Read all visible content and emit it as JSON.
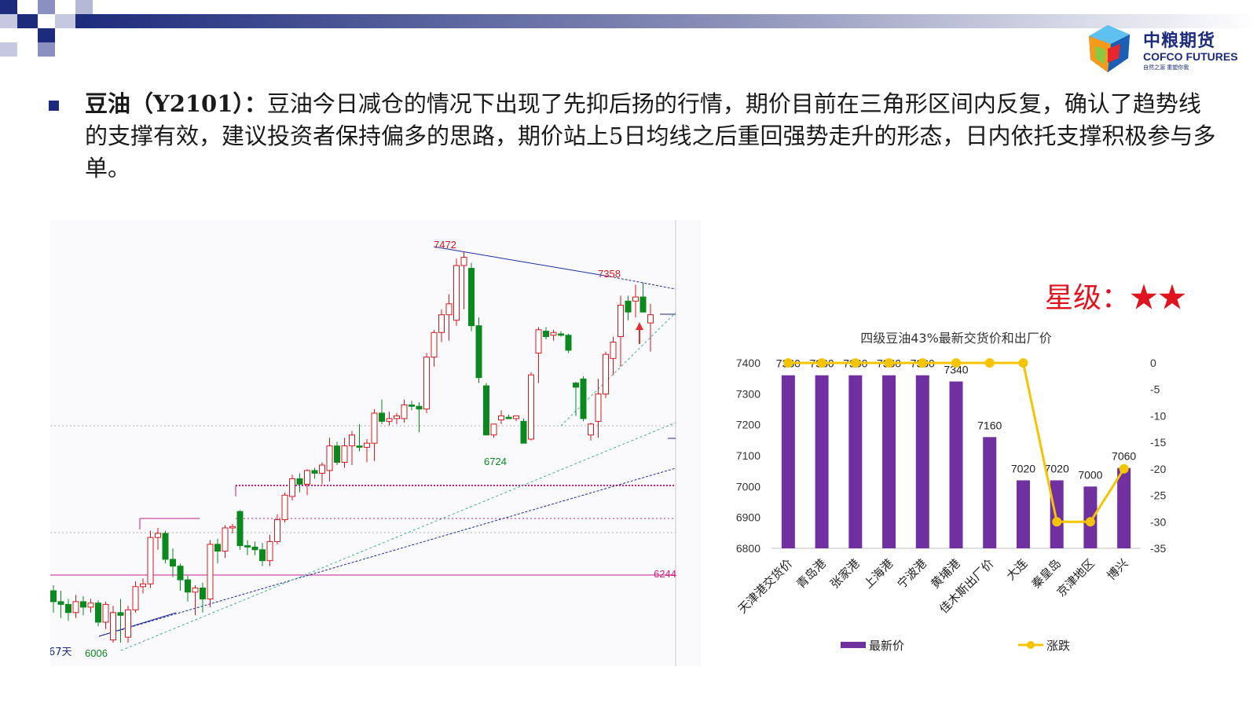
{
  "brand": {
    "name_cn": "中粮期货",
    "name_en": "COFCO FUTURES",
    "tagline": "自然之源  重塑你我",
    "colors": {
      "navy": "#1d2b7c",
      "red": "#e0141e"
    }
  },
  "paragraph": {
    "label": "豆油（Y2101）：",
    "body": "豆油今日减仓的情况下出现了先抑后扬的行情，期价目前在三角形区间内反复，确认了趋势线的支撑有效，建议投资者保持偏多的思路，期价站上5日均线之后重回强势走升的形态，日内依托支撑积极参与多单。"
  },
  "rating": {
    "text": "星级：★★"
  },
  "kline": {
    "annotations": [
      "7472",
      "7358",
      "6724",
      "6006",
      "6244",
      "67天"
    ],
    "colors": {
      "up": "#d9151b",
      "down": "#0a8a1e"
    },
    "candles": [
      [
        6230,
        6250,
        6150,
        6190
      ],
      [
        6190,
        6230,
        6130,
        6180
      ],
      [
        6180,
        6200,
        6120,
        6150
      ],
      [
        6150,
        6215,
        6130,
        6190
      ],
      [
        6190,
        6210,
        6140,
        6170
      ],
      [
        6170,
        6200,
        6150,
        6185
      ],
      [
        6185,
        6195,
        6100,
        6115
      ],
      [
        6115,
        6190,
        6090,
        6180
      ],
      [
        6050,
        6175,
        6040,
        6150
      ],
      [
        6150,
        6200,
        6040,
        6140
      ],
      [
        6060,
        6175,
        6040,
        6160
      ],
      [
        6160,
        6265,
        6150,
        6245
      ],
      [
        6245,
        6275,
        6220,
        6255
      ],
      [
        6255,
        6450,
        6240,
        6425
      ],
      [
        6425,
        6460,
        6380,
        6440
      ],
      [
        6440,
        6450,
        6330,
        6345
      ],
      [
        6345,
        6385,
        6280,
        6320
      ],
      [
        6320,
        6330,
        6230,
        6270
      ],
      [
        6270,
        6285,
        6190,
        6225
      ],
      [
        6225,
        6250,
        6140,
        6240
      ],
      [
        6240,
        6260,
        6150,
        6200
      ],
      [
        6200,
        6415,
        6170,
        6400
      ],
      [
        6400,
        6420,
        6330,
        6375
      ],
      [
        6375,
        6470,
        6350,
        6460
      ],
      [
        6460,
        6475,
        6440,
        6465
      ],
      [
        6520,
        6525,
        6380,
        6395
      ],
      [
        6395,
        6415,
        6360,
        6390
      ],
      [
        6390,
        6410,
        6360,
        6380
      ],
      [
        6380,
        6405,
        6320,
        6340
      ],
      [
        6340,
        6435,
        6320,
        6410
      ],
      [
        6410,
        6510,
        6400,
        6490
      ],
      [
        6490,
        6590,
        6480,
        6580
      ],
      [
        6575,
        6655,
        6560,
        6640
      ],
      [
        6640,
        6660,
        6590,
        6620
      ],
      [
        6620,
        6675,
        6580,
        6670
      ],
      [
        6670,
        6680,
        6640,
        6660
      ],
      [
        6660,
        6700,
        6620,
        6690
      ],
      [
        6670,
        6790,
        6630,
        6760
      ],
      [
        6760,
        6775,
        6690,
        6700
      ],
      [
        6700,
        6790,
        6680,
        6760
      ],
      [
        6760,
        6815,
        6690,
        6800
      ],
      [
        6760,
        6840,
        6740,
        6755
      ],
      [
        6755,
        6785,
        6700,
        6770
      ],
      [
        6770,
        6895,
        6705,
        6880
      ],
      [
        6880,
        6930,
        6840,
        6850
      ],
      [
        6850,
        6885,
        6835,
        6860
      ],
      [
        6860,
        6880,
        6840,
        6870
      ],
      [
        6860,
        6930,
        6845,
        6910
      ],
      [
        6910,
        6925,
        6890,
        6905
      ],
      [
        6905,
        6920,
        6810,
        6895
      ],
      [
        6895,
        7100,
        6880,
        7085
      ],
      [
        7085,
        7185,
        7050,
        7175
      ],
      [
        7175,
        7260,
        7140,
        7240
      ],
      [
        7240,
        7315,
        7145,
        7280
      ],
      [
        7220,
        7445,
        7200,
        7420
      ],
      [
        7420,
        7472,
        7260,
        7450
      ],
      [
        7410,
        7430,
        7180,
        7200
      ],
      [
        7200,
        7230,
        6990,
        7010
      ],
      [
        6980,
        6990,
        6800,
        6800
      ],
      [
        6800,
        6840,
        6790,
        6840
      ],
      [
        6855,
        6890,
        6840,
        6870
      ],
      [
        6865,
        6875,
        6860,
        6860
      ],
      [
        6860,
        6870,
        6850,
        6870
      ],
      [
        6850,
        6860,
        6770,
        6770
      ],
      [
        6785,
        7030,
        6780,
        7020
      ],
      [
        7100,
        7195,
        6990,
        7185
      ],
      [
        7180,
        7195,
        7150,
        7160
      ],
      [
        7165,
        7185,
        7145,
        7175
      ],
      [
        7170,
        7180,
        7160,
        7165
      ],
      [
        7165,
        7170,
        7100,
        7110
      ],
      [
        6990,
        6995,
        6870,
        6975
      ],
      [
        7005,
        7015,
        6850,
        6860
      ],
      [
        6800,
        6845,
        6780,
        6840
      ],
      [
        6850,
        7005,
        6790,
        6950
      ],
      [
        6950,
        7105,
        6935,
        7095
      ],
      [
        7080,
        7160,
        7020,
        7140
      ],
      [
        7160,
        7310,
        7050,
        7275
      ],
      [
        7290,
        7310,
        7220,
        7250
      ],
      [
        7290,
        7350,
        7230,
        7305
      ],
      [
        7305,
        7358,
        7250,
        7250
      ],
      [
        7210,
        7280,
        7105,
        7240
      ]
    ]
  },
  "chart_data": {
    "type": "bar",
    "title": "四级豆油43%最新交货价和出厂价",
    "categories": [
      "天津港交货价",
      "青岛港",
      "张家港",
      "上海港",
      "宁波港",
      "黄埔港",
      "佳木斯出厂价",
      "大连",
      "秦皇岛",
      "京津地区",
      "博兴"
    ],
    "series": [
      {
        "name": "最新价",
        "type": "bar",
        "axis": "left",
        "color": "#7030a0",
        "values": [
          7360,
          7360,
          7360,
          7360,
          7360,
          7340,
          7160,
          7020,
          7020,
          7000,
          7060
        ]
      },
      {
        "name": "涨跌",
        "type": "line",
        "axis": "right",
        "color": "#f5c400",
        "values": [
          0,
          0,
          0,
          0,
          0,
          0,
          0,
          0,
          -30,
          -30,
          -20
        ]
      }
    ],
    "ylim": [
      6800,
      7400
    ],
    "yticks": [
      6800,
      6900,
      7000,
      7100,
      7200,
      7300,
      7400
    ],
    "y2lim": [
      -35,
      0
    ],
    "y2ticks": [
      0,
      -5,
      -10,
      -15,
      -20,
      -25,
      -30,
      -35
    ],
    "legend": "bottom",
    "data_labels": true
  }
}
